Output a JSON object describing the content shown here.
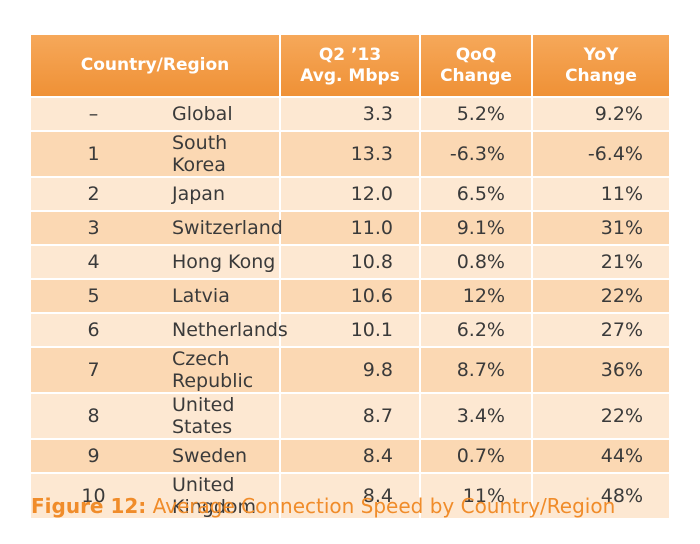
{
  "chart_data": {
    "type": "table",
    "columns": [
      "Country/Region",
      "Q2 ’13 Avg. Mbps",
      "QoQ Change",
      "YoY Change"
    ],
    "header": {
      "country": [
        "Country/Region"
      ],
      "speed": [
        "Q2 ’13",
        "Avg. Mbps"
      ],
      "qoq": [
        "QoQ",
        "Change"
      ],
      "yoy": [
        "YoY",
        "Change"
      ]
    },
    "rows": [
      {
        "rank": "–",
        "country": "Global",
        "speed": "3.3",
        "qoq": "5.2%",
        "yoy": "9.2%"
      },
      {
        "rank": "1",
        "country": "South Korea",
        "speed": "13.3",
        "qoq": "-6.3%",
        "yoy": "-6.4%"
      },
      {
        "rank": "2",
        "country": "Japan",
        "speed": "12.0",
        "qoq": "6.5%",
        "yoy": "11%"
      },
      {
        "rank": "3",
        "country": "Switzerland",
        "speed": "11.0",
        "qoq": "9.1%",
        "yoy": "31%"
      },
      {
        "rank": "4",
        "country": "Hong Kong",
        "speed": "10.8",
        "qoq": "0.8%",
        "yoy": "21%"
      },
      {
        "rank": "5",
        "country": "Latvia",
        "speed": "10.6",
        "qoq": "12%",
        "yoy": "22%"
      },
      {
        "rank": "6",
        "country": "Netherlands",
        "speed": "10.1",
        "qoq": "6.2%",
        "yoy": "27%"
      },
      {
        "rank": "7",
        "country": "Czech Republic",
        "speed": "9.8",
        "qoq": "8.7%",
        "yoy": "36%"
      },
      {
        "rank": "8",
        "country": "United States",
        "speed": "8.7",
        "qoq": "3.4%",
        "yoy": "22%"
      },
      {
        "rank": "9",
        "country": "Sweden",
        "speed": "8.4",
        "qoq": "0.7%",
        "yoy": "44%"
      },
      {
        "rank": "10",
        "country": "United Kingdom",
        "speed": "8.4",
        "qoq": "11%",
        "yoy": "48%"
      }
    ],
    "caption_lead": "Figure 12:",
    "caption_text": " Average Connection Speed by Country/Region"
  },
  "colors": {
    "header": "#ef9136",
    "row_light": "#fde8d2",
    "row_dark": "#fbd8b3",
    "caption": "#f08c2a"
  }
}
